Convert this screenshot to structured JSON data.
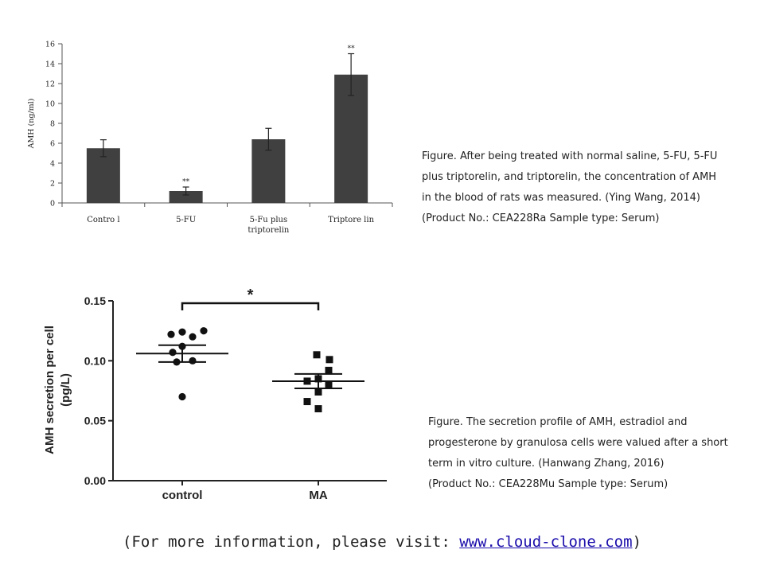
{
  "chart_data": [
    {
      "type": "bar",
      "ylabel": "AMH (ng/ml)",
      "ylim": [
        0,
        16
      ],
      "yticks": [
        0,
        2,
        4,
        6,
        8,
        10,
        12,
        14,
        16
      ],
      "categories": [
        "Control",
        "5-FU",
        "5-Fu plus triptorelin",
        "Triptorelin"
      ],
      "category_lines": [
        [
          "Contro l"
        ],
        [
          "5-FU"
        ],
        [
          "5-Fu plus",
          "triptorelin"
        ],
        [
          "Triptore lin"
        ]
      ],
      "values": [
        5.5,
        1.2,
        6.4,
        12.9
      ],
      "errors": [
        0.85,
        0.4,
        1.1,
        2.1
      ],
      "annotations": [
        "",
        "**",
        "",
        "**"
      ],
      "bar_color": "#404040"
    },
    {
      "type": "scatter",
      "ylabel": "AMH secretion per cell (pg/L)",
      "ylabel_lines": [
        "AMH secretion per cell",
        "(pg/L)"
      ],
      "ylim": [
        0,
        0.15
      ],
      "yticks": [
        "0.00",
        "0.05",
        "0.10",
        "0.15"
      ],
      "categories": [
        "control",
        "MA"
      ],
      "series": [
        {
          "name": "control",
          "marker": "circle",
          "points": [
            0.122,
            0.12,
            0.124,
            0.125,
            0.112,
            0.107,
            0.1,
            0.099,
            0.07
          ],
          "mean": 0.106,
          "sem": 0.007
        },
        {
          "name": "MA",
          "marker": "square",
          "points": [
            0.105,
            0.101,
            0.092,
            0.085,
            0.083,
            0.08,
            0.074,
            0.066,
            0.06
          ],
          "mean": 0.083,
          "sem": 0.006
        }
      ],
      "significance": "*"
    }
  ],
  "captions": [
    [
      "Figure. After being treated with normal saline, 5-FU, 5-FU",
      "plus triptorelin, and triptorelin, the concentration of AMH",
      "in the blood of rats was measured. (Ying Wang, 2014)",
      "(Product No.: CEA228Ra Sample type: Serum)"
    ],
    [
      "Figure. The secretion profile of AMH, estradiol and",
      "progesterone by granulosa cells were valued after a short",
      "term in vitro culture. (Hanwang Zhang, 2016)",
      "(Product No.: CEA228Mu Sample type: Serum)"
    ]
  ],
  "footer": {
    "prefix": "(For more information, please visit: ",
    "link_text": "www.cloud-clone.com",
    "suffix": ")"
  }
}
